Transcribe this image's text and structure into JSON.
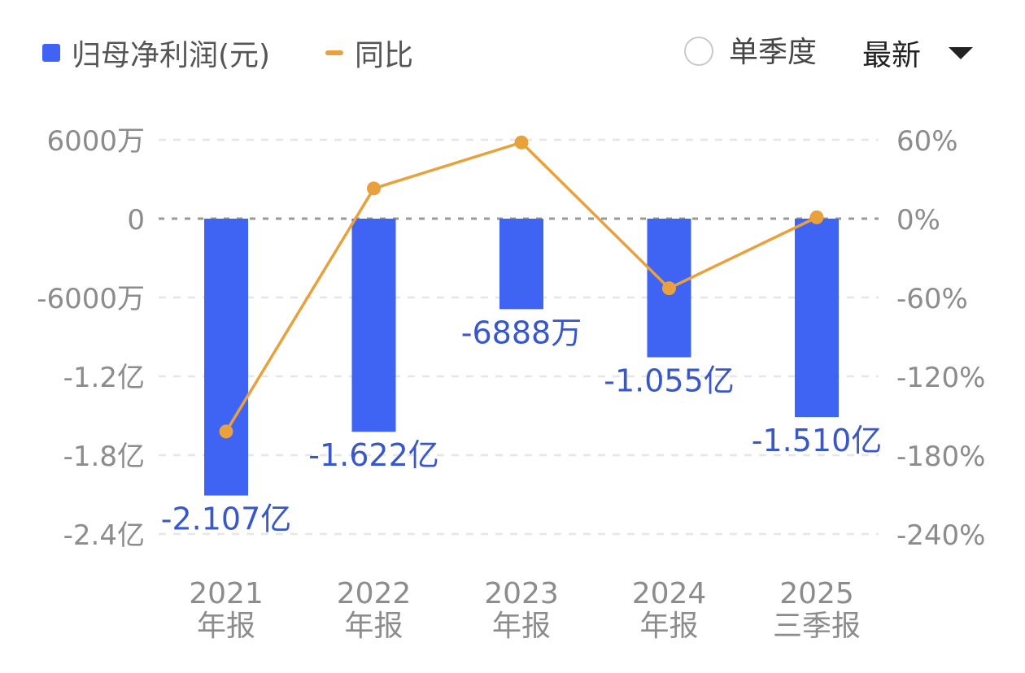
{
  "legend": {
    "bar_label": "归母净利润(元)",
    "line_label": "同比",
    "bar_color": "#3f63f3",
    "line_color": "#e8a13c"
  },
  "controls": {
    "single_quarter_label": "单季度",
    "sort_label": "最新",
    "sort_icon": "triangle-down-icon"
  },
  "chart_data": {
    "type": "bar",
    "categories": [
      [
        "2021",
        "年报"
      ],
      [
        "2022",
        "年报"
      ],
      [
        "2023",
        "年报"
      ],
      [
        "2024",
        "年报"
      ],
      [
        "2025",
        "三季报"
      ]
    ],
    "series": [
      {
        "name": "归母净利润(元)",
        "type": "bar",
        "axis": "left",
        "values": [
          -210700000,
          -162200000,
          -68880000,
          -105500000,
          -151000000
        ],
        "data_labels": [
          "-2.107亿",
          "-1.622亿",
          "-6888万",
          "-1.055亿",
          "-1.510亿"
        ]
      },
      {
        "name": "同比",
        "type": "line",
        "axis": "right",
        "values": [
          -162,
          23,
          58,
          -53,
          1
        ]
      }
    ],
    "y_left": {
      "min": -240000000,
      "max": 60000000,
      "ticks": [
        60000000,
        0,
        -60000000,
        -120000000,
        -180000000,
        -240000000
      ],
      "tick_labels": [
        "6000万",
        "0",
        "-6000万",
        "-1.2亿",
        "-1.8亿",
        "-2.4亿"
      ]
    },
    "y_right": {
      "min": -240,
      "max": 60,
      "ticks": [
        60,
        0,
        -60,
        -120,
        -180,
        -240
      ],
      "tick_labels": [
        "60%",
        "0%",
        "-60%",
        "-120%",
        "-180%",
        "-240%"
      ]
    },
    "grid": true,
    "legend_position": "top-left"
  }
}
